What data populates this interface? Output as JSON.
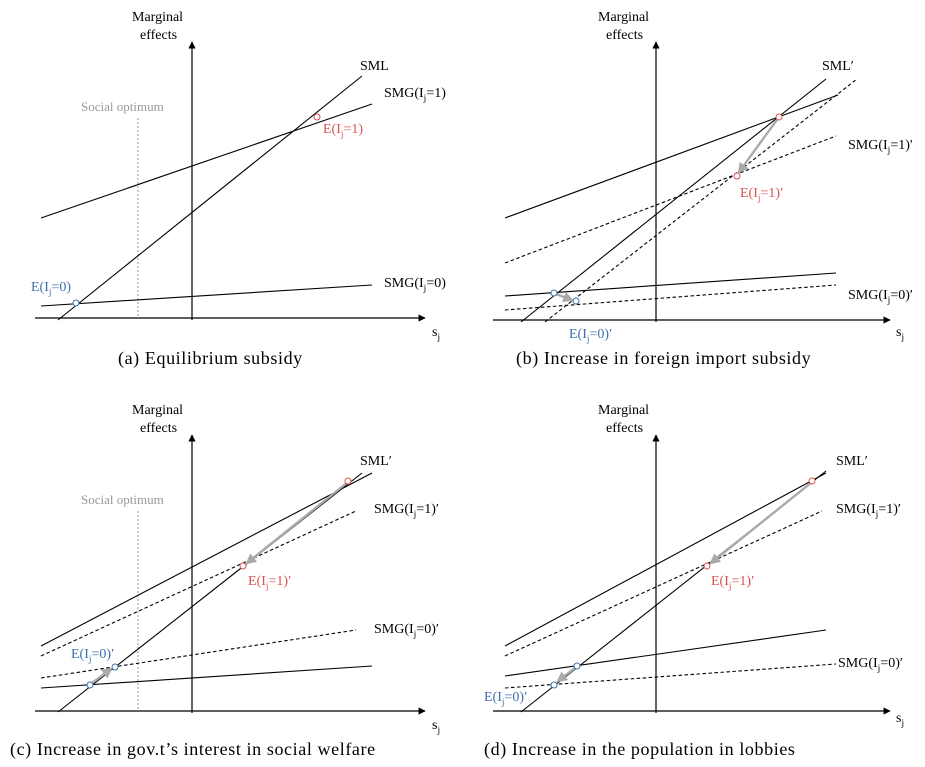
{
  "colors": {
    "red": "#d9534f",
    "blue": "#3d6fb0",
    "grey_arrow": "#aaaaaa",
    "grey_text": "#999999"
  },
  "axes": {
    "ylabel_line1": "Marginal",
    "ylabel_line2": "effects",
    "xlabel_main": "s",
    "xlabel_sub": "j"
  },
  "social_optimum": "Social optimum",
  "panels": [
    {
      "caption": "(a)  Equilibrium subsidy",
      "sml": "SML",
      "smg1": {
        "main": "SMG(I",
        "sub": "j",
        "tail": "=1)"
      },
      "smg0": {
        "main": "SMG(I",
        "sub": "j",
        "tail": "=0)"
      },
      "e1": {
        "main": "E(I",
        "sub": "j",
        "tail": "=1)"
      },
      "e0": {
        "main": "E(I",
        "sub": "j",
        "tail": "=0)"
      }
    },
    {
      "caption": "(b)  Increase in foreign import subsidy",
      "sml": "SML′",
      "smg1": {
        "main": "SMG(I",
        "sub": "j",
        "tail": "=1)′"
      },
      "smg0": {
        "main": "SMG(I",
        "sub": "j",
        "tail": "=0)′"
      },
      "e1": {
        "main": "E(I",
        "sub": "j",
        "tail": "=1)′"
      },
      "e0": {
        "main": "E(I",
        "sub": "j",
        "tail": "=0)′"
      }
    },
    {
      "caption": "(c)  Increase in gov.t’s interest in social welfare",
      "sml": "SML′",
      "smg1": {
        "main": "SMG(I",
        "sub": "j",
        "tail": "=1)′"
      },
      "smg0": {
        "main": "SMG(I",
        "sub": "j",
        "tail": "=0)′"
      },
      "e1": {
        "main": "E(I",
        "sub": "j",
        "tail": "=1)′"
      },
      "e0": {
        "main": "E(I",
        "sub": "j",
        "tail": "=0)′"
      }
    },
    {
      "caption": "(d)  Increase in the population in lobbies",
      "sml": "SML′",
      "smg1": {
        "main": "SMG(I",
        "sub": "j",
        "tail": "=1)′"
      },
      "smg0": {
        "main": "SMG(I",
        "sub": "j",
        "tail": "=0)′"
      },
      "e1": {
        "main": "E(I",
        "sub": "j",
        "tail": "=1)′"
      },
      "e0": {
        "main": "E(I",
        "sub": "j",
        "tail": "=0)′"
      }
    }
  ]
}
